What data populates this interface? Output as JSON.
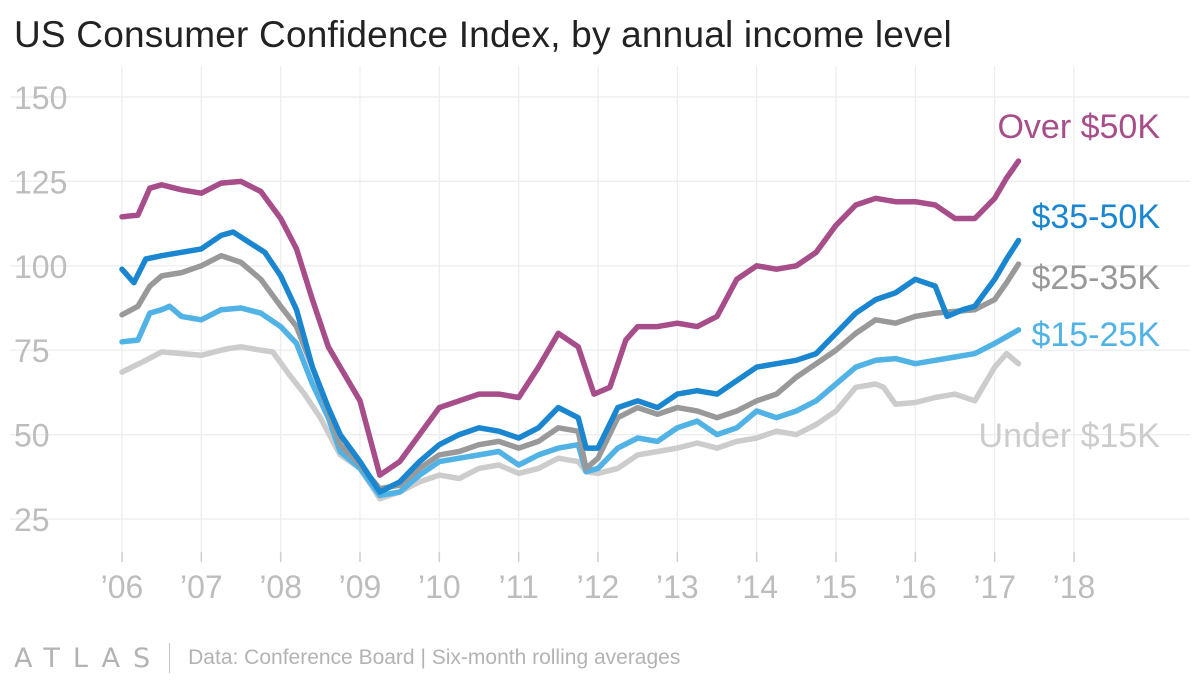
{
  "title": "US Consumer Confidence Index, by annual income level",
  "footer": {
    "brand": "ATLAS",
    "source": "Data: Conference Board | Six-month rolling averages"
  },
  "chart_data": {
    "type": "line",
    "title": "US Consumer Confidence Index, by annual income level",
    "xlabel": "",
    "ylabel": "",
    "xlim": [
      2006,
      2018.6
    ],
    "ylim": [
      22,
      155
    ],
    "grid": true,
    "x_ticks": [
      2006,
      2007,
      2008,
      2009,
      2010,
      2011,
      2012,
      2013,
      2014,
      2015,
      2016,
      2017,
      2018
    ],
    "x_tick_labels": [
      "’06",
      "’07",
      "’08",
      "’09",
      "’10",
      "’11",
      "’12",
      "’13",
      "’14",
      "’15",
      "’16",
      "’17",
      "’18"
    ],
    "y_ticks": [
      25,
      50,
      75,
      100,
      125,
      150
    ],
    "y_tick_labels": [
      "25",
      "50",
      "75",
      "100",
      "125",
      "150"
    ],
    "legend": "direct labels at right end of lines",
    "series": [
      {
        "name": "Under $15K",
        "label": "Under $15K",
        "color": "#cccccc",
        "points": [
          [
            2006.0,
            68.5
          ],
          [
            2006.3,
            72
          ],
          [
            2006.5,
            74.5
          ],
          [
            2006.75,
            74
          ],
          [
            2007.0,
            73.5
          ],
          [
            2007.25,
            75
          ],
          [
            2007.35,
            75.5
          ],
          [
            2007.5,
            76
          ],
          [
            2007.75,
            75
          ],
          [
            2007.9,
            74.5
          ],
          [
            2008.1,
            68
          ],
          [
            2008.3,
            62
          ],
          [
            2008.5,
            55
          ],
          [
            2008.75,
            44
          ],
          [
            2009.0,
            40
          ],
          [
            2009.25,
            31
          ],
          [
            2009.5,
            33
          ],
          [
            2009.75,
            36
          ],
          [
            2010.0,
            38
          ],
          [
            2010.25,
            37
          ],
          [
            2010.5,
            40
          ],
          [
            2010.75,
            41
          ],
          [
            2011.0,
            38.5
          ],
          [
            2011.25,
            40
          ],
          [
            2011.5,
            43
          ],
          [
            2011.75,
            42
          ],
          [
            2011.85,
            39
          ],
          [
            2012.0,
            38.5
          ],
          [
            2012.25,
            40
          ],
          [
            2012.5,
            44
          ],
          [
            2012.75,
            45
          ],
          [
            2013.0,
            46
          ],
          [
            2013.25,
            47.5
          ],
          [
            2013.5,
            46
          ],
          [
            2013.75,
            48
          ],
          [
            2014.0,
            49
          ],
          [
            2014.25,
            51
          ],
          [
            2014.5,
            50
          ],
          [
            2014.75,
            53
          ],
          [
            2015.0,
            57
          ],
          [
            2015.25,
            64
          ],
          [
            2015.5,
            65
          ],
          [
            2015.6,
            64
          ],
          [
            2015.75,
            59
          ],
          [
            2016.0,
            59.5
          ],
          [
            2016.25,
            61
          ],
          [
            2016.5,
            62
          ],
          [
            2016.75,
            60
          ],
          [
            2017.0,
            70
          ],
          [
            2017.15,
            74
          ],
          [
            2017.3,
            71
          ]
        ]
      },
      {
        "name": "$15-25K",
        "label": "$15-25K",
        "color": "#51b2e5",
        "points": [
          [
            2006.0,
            77.5
          ],
          [
            2006.2,
            78
          ],
          [
            2006.35,
            86
          ],
          [
            2006.5,
            87
          ],
          [
            2006.6,
            88
          ],
          [
            2006.75,
            85
          ],
          [
            2007.0,
            84
          ],
          [
            2007.25,
            87
          ],
          [
            2007.5,
            87.5
          ],
          [
            2007.75,
            86
          ],
          [
            2008.0,
            82
          ],
          [
            2008.2,
            77
          ],
          [
            2008.4,
            65
          ],
          [
            2008.6,
            55
          ],
          [
            2008.75,
            45
          ],
          [
            2009.0,
            40
          ],
          [
            2009.25,
            32
          ],
          [
            2009.5,
            33
          ],
          [
            2009.75,
            38
          ],
          [
            2010.0,
            42
          ],
          [
            2010.25,
            43
          ],
          [
            2010.5,
            44
          ],
          [
            2010.75,
            45
          ],
          [
            2011.0,
            41
          ],
          [
            2011.25,
            44
          ],
          [
            2011.5,
            46
          ],
          [
            2011.75,
            47
          ],
          [
            2011.85,
            39
          ],
          [
            2012.0,
            40
          ],
          [
            2012.25,
            46
          ],
          [
            2012.5,
            49
          ],
          [
            2012.75,
            48
          ],
          [
            2013.0,
            52
          ],
          [
            2013.25,
            54
          ],
          [
            2013.5,
            50
          ],
          [
            2013.75,
            52
          ],
          [
            2014.0,
            57
          ],
          [
            2014.25,
            55
          ],
          [
            2014.5,
            57
          ],
          [
            2014.75,
            60
          ],
          [
            2015.0,
            65
          ],
          [
            2015.25,
            70
          ],
          [
            2015.5,
            72
          ],
          [
            2015.75,
            72.5
          ],
          [
            2016.0,
            71
          ],
          [
            2016.25,
            72
          ],
          [
            2016.5,
            73
          ],
          [
            2016.75,
            74
          ],
          [
            2017.0,
            77
          ],
          [
            2017.15,
            79
          ],
          [
            2017.3,
            81
          ]
        ]
      },
      {
        "name": "$25-35K",
        "label": "$25-35K",
        "color": "#999999",
        "points": [
          [
            2006.0,
            85.5
          ],
          [
            2006.2,
            88
          ],
          [
            2006.35,
            94
          ],
          [
            2006.5,
            97
          ],
          [
            2006.75,
            98
          ],
          [
            2007.0,
            100
          ],
          [
            2007.25,
            103
          ],
          [
            2007.5,
            101
          ],
          [
            2007.75,
            96
          ],
          [
            2008.0,
            88
          ],
          [
            2008.2,
            82
          ],
          [
            2008.4,
            70
          ],
          [
            2008.6,
            57
          ],
          [
            2008.75,
            47
          ],
          [
            2009.0,
            41
          ],
          [
            2009.25,
            34
          ],
          [
            2009.5,
            35
          ],
          [
            2009.75,
            40
          ],
          [
            2010.0,
            44
          ],
          [
            2010.25,
            45
          ],
          [
            2010.5,
            47
          ],
          [
            2010.75,
            48
          ],
          [
            2011.0,
            46
          ],
          [
            2011.25,
            48
          ],
          [
            2011.5,
            52
          ],
          [
            2011.75,
            51
          ],
          [
            2011.85,
            40
          ],
          [
            2012.0,
            43
          ],
          [
            2012.25,
            55
          ],
          [
            2012.5,
            58
          ],
          [
            2012.75,
            56
          ],
          [
            2013.0,
            58
          ],
          [
            2013.25,
            57
          ],
          [
            2013.5,
            55
          ],
          [
            2013.75,
            57
          ],
          [
            2014.0,
            60
          ],
          [
            2014.25,
            62
          ],
          [
            2014.5,
            67
          ],
          [
            2014.75,
            71
          ],
          [
            2015.0,
            75
          ],
          [
            2015.25,
            80
          ],
          [
            2015.5,
            84
          ],
          [
            2015.75,
            83
          ],
          [
            2016.0,
            85
          ],
          [
            2016.25,
            86
          ],
          [
            2016.5,
            86.5
          ],
          [
            2016.75,
            87
          ],
          [
            2017.0,
            90
          ],
          [
            2017.15,
            95
          ],
          [
            2017.3,
            100.5
          ]
        ]
      },
      {
        "name": "$35-50K",
        "label": "$35-50K",
        "color": "#1a86d0",
        "points": [
          [
            2006.0,
            99
          ],
          [
            2006.15,
            95
          ],
          [
            2006.3,
            102
          ],
          [
            2006.5,
            103
          ],
          [
            2006.75,
            104
          ],
          [
            2007.0,
            105
          ],
          [
            2007.25,
            109
          ],
          [
            2007.4,
            110
          ],
          [
            2007.6,
            107
          ],
          [
            2007.8,
            104
          ],
          [
            2008.0,
            97
          ],
          [
            2008.2,
            87
          ],
          [
            2008.4,
            70
          ],
          [
            2008.6,
            58
          ],
          [
            2008.75,
            50
          ],
          [
            2009.0,
            42
          ],
          [
            2009.25,
            33
          ],
          [
            2009.5,
            36
          ],
          [
            2009.75,
            42
          ],
          [
            2010.0,
            47
          ],
          [
            2010.25,
            50
          ],
          [
            2010.5,
            52
          ],
          [
            2010.75,
            51
          ],
          [
            2011.0,
            49
          ],
          [
            2011.25,
            52
          ],
          [
            2011.5,
            58
          ],
          [
            2011.75,
            55
          ],
          [
            2011.85,
            46
          ],
          [
            2012.0,
            46
          ],
          [
            2012.25,
            58
          ],
          [
            2012.5,
            60
          ],
          [
            2012.75,
            58
          ],
          [
            2013.0,
            62
          ],
          [
            2013.25,
            63
          ],
          [
            2013.5,
            62
          ],
          [
            2013.75,
            66
          ],
          [
            2014.0,
            70
          ],
          [
            2014.25,
            71
          ],
          [
            2014.5,
            72
          ],
          [
            2014.75,
            74
          ],
          [
            2015.0,
            80
          ],
          [
            2015.25,
            86
          ],
          [
            2015.5,
            90
          ],
          [
            2015.75,
            92
          ],
          [
            2016.0,
            96
          ],
          [
            2016.25,
            94
          ],
          [
            2016.4,
            85
          ],
          [
            2016.6,
            87
          ],
          [
            2016.75,
            88
          ],
          [
            2017.0,
            96
          ],
          [
            2017.15,
            102
          ],
          [
            2017.3,
            107.5
          ]
        ]
      },
      {
        "name": "Over $50K",
        "label": "Over $50K",
        "color": "#a64d8a",
        "points": [
          [
            2006.0,
            114.5
          ],
          [
            2006.2,
            115
          ],
          [
            2006.35,
            123
          ],
          [
            2006.5,
            124
          ],
          [
            2006.75,
            122.5
          ],
          [
            2007.0,
            121.5
          ],
          [
            2007.25,
            124.5
          ],
          [
            2007.5,
            125
          ],
          [
            2007.75,
            122
          ],
          [
            2008.0,
            114
          ],
          [
            2008.2,
            105
          ],
          [
            2008.4,
            90
          ],
          [
            2008.6,
            76
          ],
          [
            2008.75,
            70
          ],
          [
            2009.0,
            60
          ],
          [
            2009.25,
            38
          ],
          [
            2009.5,
            42
          ],
          [
            2009.75,
            50
          ],
          [
            2010.0,
            58
          ],
          [
            2010.25,
            60
          ],
          [
            2010.5,
            62
          ],
          [
            2010.75,
            62
          ],
          [
            2011.0,
            61
          ],
          [
            2011.25,
            70
          ],
          [
            2011.5,
            80
          ],
          [
            2011.75,
            76
          ],
          [
            2011.95,
            62
          ],
          [
            2012.15,
            64
          ],
          [
            2012.35,
            78
          ],
          [
            2012.5,
            82
          ],
          [
            2012.75,
            82
          ],
          [
            2013.0,
            83
          ],
          [
            2013.25,
            82
          ],
          [
            2013.5,
            85
          ],
          [
            2013.75,
            96
          ],
          [
            2014.0,
            100
          ],
          [
            2014.25,
            99
          ],
          [
            2014.5,
            100
          ],
          [
            2014.75,
            104
          ],
          [
            2015.0,
            112
          ],
          [
            2015.25,
            118
          ],
          [
            2015.5,
            120
          ],
          [
            2015.75,
            119
          ],
          [
            2016.0,
            119
          ],
          [
            2016.25,
            118
          ],
          [
            2016.5,
            114
          ],
          [
            2016.75,
            114
          ],
          [
            2017.0,
            120
          ],
          [
            2017.15,
            126
          ],
          [
            2017.3,
            131
          ]
        ]
      }
    ]
  }
}
